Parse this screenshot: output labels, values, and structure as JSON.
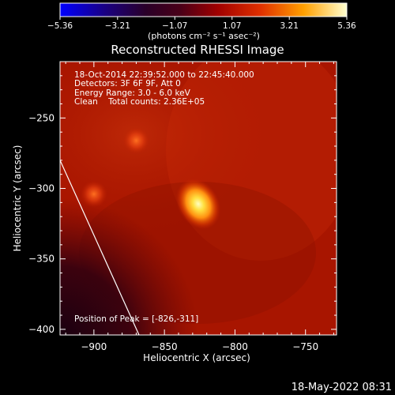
{
  "colorbar": {
    "ticks": [
      "-5.36",
      "-3.21",
      "-1.07",
      "1.07",
      "3.21",
      "5.36"
    ],
    "min": -5.36,
    "max": 5.36,
    "unit_label": "(photons cm⁻² s⁻¹ asec⁻²)"
  },
  "chart_data": {
    "type": "heatmap",
    "title": "Reconstructed RHESSI Image",
    "xlabel": "Heliocentric X (arcsec)",
    "ylabel": "Heliocentric Y (arcsec)",
    "xlim": [
      -924,
      -728
    ],
    "ylim": [
      -404,
      -210
    ],
    "x_ticks": [
      -900,
      -850,
      -800,
      -750
    ],
    "y_ticks": [
      -250,
      -300,
      -350,
      -400
    ],
    "x_tick_labels": [
      "−900",
      "−850",
      "−800",
      "−750"
    ],
    "y_tick_labels": [
      "−250",
      "−300",
      "−350",
      "−400"
    ],
    "annotations": [
      "18-Oct-2014 22:39:52.000 to 22:45:40.000",
      "Detectors: 3F 6F 9F, Att 0",
      "Energy Range: 3.0 - 6.0 keV",
      "Clean    Total counts: 2.36E+05"
    ],
    "peak_label": "Position of Peak = [-826,-311]",
    "peak": [
      -826,
      -311
    ],
    "sources": [
      {
        "x": -826,
        "y": -311,
        "intensity": 5.36
      },
      {
        "x": -870,
        "y": -266,
        "intensity": 2.4
      },
      {
        "x": -900,
        "y": -304,
        "intensity": 2.2
      }
    ],
    "limb_line": [
      [
        -924,
        -280
      ],
      [
        -868,
        -404
      ]
    ]
  },
  "footer": {
    "timestamp": "18-May-2022 08:31"
  }
}
